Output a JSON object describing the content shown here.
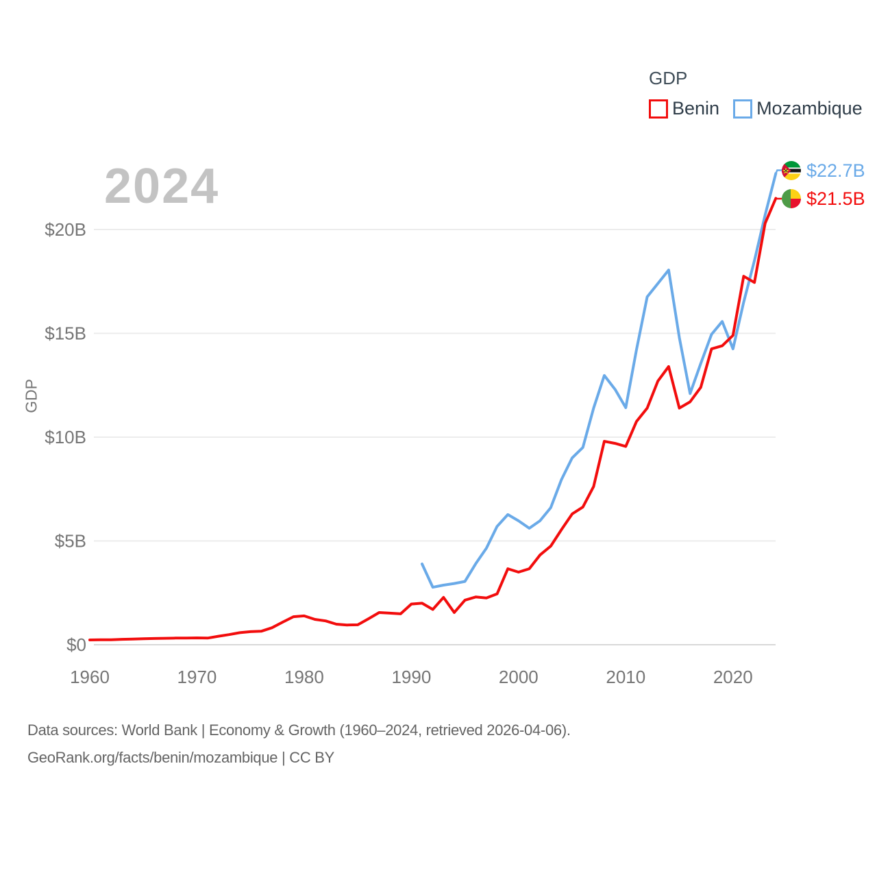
{
  "watermark_year": "2024",
  "legend": {
    "title": "GDP",
    "items": [
      {
        "label": "Benin",
        "color": "#f20d0d"
      },
      {
        "label": "Mozambique",
        "color": "#6aaae8"
      }
    ]
  },
  "end_labels": [
    {
      "country": "Mozambique",
      "value": "$22.7B",
      "color": "#6aaae8"
    },
    {
      "country": "Benin",
      "value": "$21.5B",
      "color": "#f20d0d"
    }
  ],
  "footer": {
    "line1": "Data sources: World Bank | Economy & Growth (1960–2024, retrieved 2026-04-06).",
    "line2": "GeoRank.org/facts/benin/mozambique | CC BY"
  },
  "chart_data": {
    "type": "line",
    "title": "GDP",
    "xlabel": "",
    "ylabel": "GDP",
    "unit": "billion USD (current)",
    "x_range": [
      1960,
      2024
    ],
    "ylim": [
      0,
      22.8
    ],
    "grid": "horizontal",
    "legend_position": "top-right",
    "y_ticks": [
      {
        "value": 0,
        "label": "$0"
      },
      {
        "value": 5,
        "label": "$5B"
      },
      {
        "value": 10,
        "label": "$10B"
      },
      {
        "value": 15,
        "label": "$15B"
      },
      {
        "value": 20,
        "label": "$20B"
      }
    ],
    "x_ticks": [
      {
        "value": 1960,
        "label": "1960"
      },
      {
        "value": 1970,
        "label": "1970"
      },
      {
        "value": 1980,
        "label": "1980"
      },
      {
        "value": 1990,
        "label": "1990"
      },
      {
        "value": 2000,
        "label": "2000"
      },
      {
        "value": 2010,
        "label": "2010"
      },
      {
        "value": 2020,
        "label": "2020"
      }
    ],
    "series": [
      {
        "name": "Benin",
        "color": "#f20d0d",
        "start_year": 1960,
        "end_value_label": "$21.5B",
        "values": [
          0.23,
          0.24,
          0.24,
          0.26,
          0.27,
          0.29,
          0.3,
          0.31,
          0.32,
          0.32,
          0.33,
          0.32,
          0.41,
          0.49,
          0.58,
          0.63,
          0.65,
          0.82,
          1.09,
          1.35,
          1.39,
          1.22,
          1.15,
          0.99,
          0.95,
          0.96,
          1.25,
          1.55,
          1.52,
          1.49,
          1.96,
          2.0,
          1.7,
          2.28,
          1.55,
          2.15,
          2.3,
          2.25,
          2.45,
          3.66,
          3.5,
          3.66,
          4.32,
          4.75,
          5.54,
          6.3,
          6.63,
          7.62,
          9.8,
          9.7,
          9.55,
          10.75,
          11.4,
          12.7,
          13.4,
          11.4,
          11.7,
          12.4,
          14.25,
          14.4,
          14.9,
          17.75,
          17.45,
          20.3,
          21.5
        ]
      },
      {
        "name": "Mozambique",
        "color": "#6aaae8",
        "start_year": 1991,
        "end_value_label": "$22.7B",
        "values": [
          3.89,
          2.77,
          2.87,
          2.95,
          3.05,
          3.9,
          4.65,
          5.7,
          6.27,
          5.97,
          5.61,
          5.97,
          6.6,
          7.95,
          9.0,
          9.5,
          11.4,
          12.97,
          12.3,
          11.42,
          14.2,
          16.76,
          17.4,
          18.05,
          14.8,
          12.1,
          13.55,
          14.95,
          15.57,
          14.25,
          16.5,
          18.5,
          20.7,
          22.7
        ]
      }
    ]
  }
}
